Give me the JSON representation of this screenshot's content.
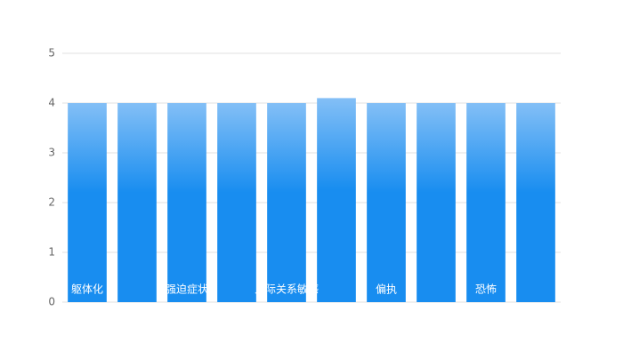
{
  "chart_data": {
    "type": "bar",
    "categories": [
      "躯体化",
      null,
      "强迫症状",
      null,
      "人际关系敏感",
      null,
      "偏执",
      null,
      "恐怖",
      null
    ],
    "values": [
      4,
      4,
      4,
      4,
      4,
      4.1,
      4,
      4,
      4,
      4
    ],
    "colors": [
      "#83bff6",
      "#188df0"
    ],
    "ylim": [
      0,
      5
    ],
    "yticks": [
      0,
      1,
      2,
      3,
      4,
      5
    ],
    "grid": true
  }
}
